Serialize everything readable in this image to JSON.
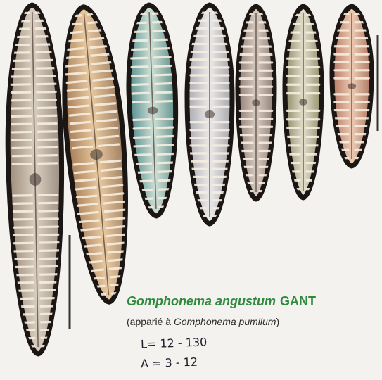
{
  "caption": {
    "species": "Gomphonema angustum",
    "author": "GANT",
    "paired_prefix": "(apparié à ",
    "paired_species": "Gomphonema pumilum",
    "paired_suffix": ")"
  },
  "handwritten": {
    "length": "L= 12 - 130",
    "width": "A = 3 - 12"
  },
  "colors": {
    "background": "#f3f2ef",
    "valve_outline": "#1b1613",
    "striae": "#f7eee0",
    "caption_green": "#2f8a3e"
  }
}
